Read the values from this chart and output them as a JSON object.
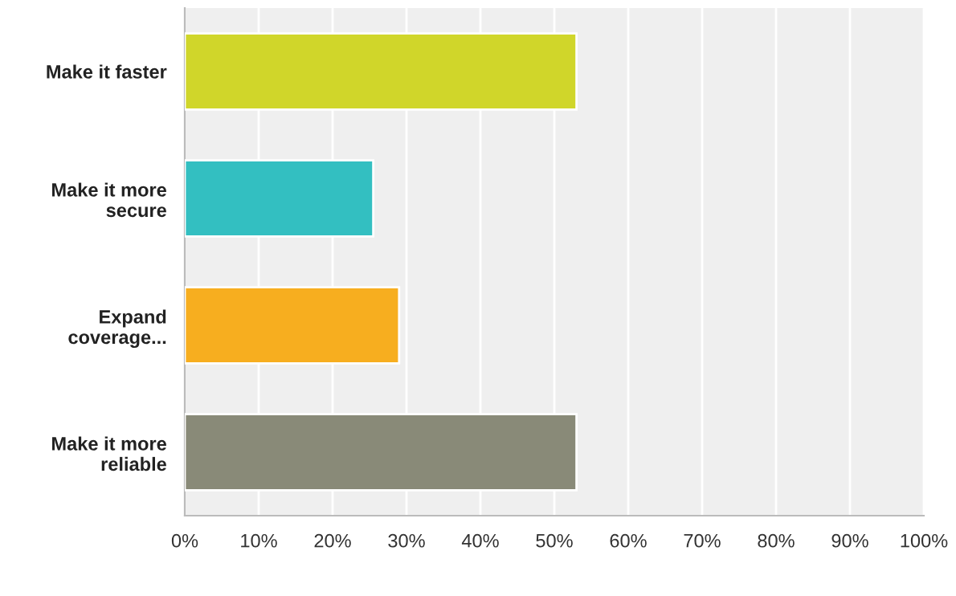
{
  "chart_data": {
    "type": "bar",
    "orientation": "horizontal",
    "categories": [
      "Make it faster",
      "Make it more\nsecure",
      "Expand\ncoverage...",
      "Make it more\nreliable"
    ],
    "values": [
      53,
      25.5,
      29,
      53
    ],
    "colors": [
      "#d0d62a",
      "#33bfc1",
      "#f7ae1f",
      "#898a78"
    ],
    "xlim": [
      0,
      100
    ],
    "xticks": [
      {
        "value": 0,
        "label": "0%"
      },
      {
        "value": 10,
        "label": "10%"
      },
      {
        "value": 20,
        "label": "20%"
      },
      {
        "value": 30,
        "label": "30%"
      },
      {
        "value": 40,
        "label": "40%"
      },
      {
        "value": 50,
        "label": "50%"
      },
      {
        "value": 60,
        "label": "60%"
      },
      {
        "value": 70,
        "label": "70%"
      },
      {
        "value": 80,
        "label": "80%"
      },
      {
        "value": 90,
        "label": "90%"
      },
      {
        "value": 100,
        "label": "100%"
      }
    ],
    "grid": "x",
    "legend": false
  }
}
